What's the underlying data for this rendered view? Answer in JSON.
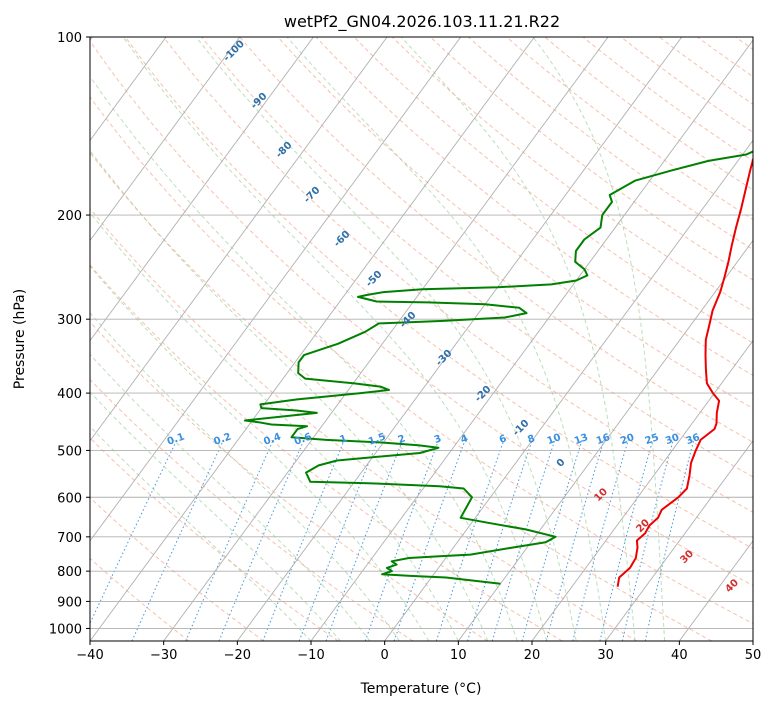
{
  "chart_data": {
    "type": "line",
    "title": "wetPf2_GN04.2026.103.11.21.R22",
    "xlabel": "Temperature (°C)",
    "ylabel": "Pressure (hPa)",
    "xlim": [
      -40,
      50
    ],
    "ylim": [
      1050,
      100
    ],
    "y_scale": "log",
    "grid": true,
    "x_ticks": [
      -40,
      -30,
      -20,
      -10,
      0,
      10,
      20,
      30,
      40,
      50
    ],
    "x_tick_labels": [
      "−40",
      "−30",
      "−20",
      "−10",
      "0",
      "10",
      "20",
      "30",
      "40",
      "50"
    ],
    "y_ticks": [
      100,
      200,
      300,
      400,
      500,
      600,
      700,
      800,
      900,
      1000
    ],
    "y_tick_labels": [
      "100",
      "200",
      "300",
      "400",
      "500",
      "600",
      "700",
      "800",
      "900",
      "1000"
    ],
    "dry_adiabat_labels": [
      "-100",
      "-90",
      "-80",
      "-70",
      "-60",
      "-50",
      "-40",
      "-30",
      "-20",
      "-10",
      "0",
      "10",
      "20",
      "30",
      "40"
    ],
    "mixing_ratio_labels": [
      "0.1",
      "0.2",
      "0.4",
      "0.6",
      "1",
      "1.5",
      "2",
      "3",
      "4",
      "6",
      "8",
      "10",
      "13",
      "16",
      "20",
      "25",
      "30",
      "36"
    ],
    "series": [
      {
        "role": "temperature",
        "color": "#ee0000",
        "points": [
          [
            26.2,
            850
          ],
          [
            25.5,
            820
          ],
          [
            26.0,
            790
          ],
          [
            25.8,
            760
          ],
          [
            25.0,
            730
          ],
          [
            24.2,
            710
          ],
          [
            24.6,
            690
          ],
          [
            24.4,
            670
          ],
          [
            24.8,
            650
          ],
          [
            24.5,
            630
          ],
          [
            25.5,
            600
          ],
          [
            25.8,
            580
          ],
          [
            24.8,
            550
          ],
          [
            23.8,
            525
          ],
          [
            23.2,
            500
          ],
          [
            22.8,
            480
          ],
          [
            23.6,
            460
          ],
          [
            23.3,
            450
          ],
          [
            22.3,
            432
          ],
          [
            21.4,
            412
          ],
          [
            19.8,
            400
          ],
          [
            18.0,
            385
          ],
          [
            16.5,
            365
          ],
          [
            15.0,
            345
          ],
          [
            13.5,
            325
          ],
          [
            12.4,
            305
          ],
          [
            11.5,
            290
          ],
          [
            10.7,
            270
          ],
          [
            9.8,
            255
          ],
          [
            8.8,
            240
          ],
          [
            7.6,
            225
          ],
          [
            6.4,
            210
          ],
          [
            5.2,
            195
          ],
          [
            3.8,
            180
          ],
          [
            2.6,
            168
          ],
          [
            1.3,
            155
          ],
          [
            0.3,
            145
          ],
          [
            -0.3,
            135
          ],
          [
            0.0,
            126
          ],
          [
            0.6,
            117
          ],
          [
            1.2,
            110
          ],
          [
            1.8,
            102
          ],
          [
            2.4,
            97
          ]
        ]
      },
      {
        "role": "dewpoint",
        "color": "#008000",
        "points": [
          [
            10.0,
            840
          ],
          [
            6.0,
            830
          ],
          [
            2.0,
            820
          ],
          [
            -3.0,
            815
          ],
          [
            -7.0,
            810
          ],
          [
            -6.0,
            800
          ],
          [
            -7.0,
            790
          ],
          [
            -6.0,
            780
          ],
          [
            -7.0,
            770
          ],
          [
            -5.0,
            760
          ],
          [
            -1.0,
            755
          ],
          [
            3.0,
            750
          ],
          [
            8.0,
            730
          ],
          [
            12.0,
            715
          ],
          [
            12.8,
            700
          ],
          [
            8.0,
            680
          ],
          [
            3.0,
            665
          ],
          [
            -2.0,
            650
          ],
          [
            -2.5,
            600
          ],
          [
            -4.5,
            580
          ],
          [
            -8.0,
            575
          ],
          [
            -18.0,
            568
          ],
          [
            -26.0,
            565
          ],
          [
            -27.5,
            545
          ],
          [
            -26.5,
            530
          ],
          [
            -24.5,
            520
          ],
          [
            -14.0,
            505
          ],
          [
            -12.0,
            495
          ],
          [
            -15.0,
            490
          ],
          [
            -20.0,
            485
          ],
          [
            -28.0,
            480
          ],
          [
            -33.0,
            475
          ],
          [
            -33.0,
            460
          ],
          [
            -32.0,
            455
          ],
          [
            -37.0,
            452
          ],
          [
            -39.0,
            448
          ],
          [
            -41.0,
            445
          ],
          [
            -32.0,
            432
          ],
          [
            -35.0,
            428
          ],
          [
            -40.0,
            424
          ],
          [
            -40.5,
            418
          ],
          [
            -36.0,
            410
          ],
          [
            -28.0,
            400
          ],
          [
            -24.5,
            395
          ],
          [
            -26.0,
            390
          ],
          [
            -30.0,
            385
          ],
          [
            -37.0,
            378
          ],
          [
            -38.5,
            370
          ],
          [
            -39.5,
            355
          ],
          [
            -39.5,
            345
          ],
          [
            -36.0,
            330
          ],
          [
            -33.5,
            315
          ],
          [
            -32.5,
            305
          ],
          [
            -24.0,
            302
          ],
          [
            -16.0,
            298
          ],
          [
            -13.5,
            293
          ],
          [
            -15.0,
            287
          ],
          [
            -20.0,
            283
          ],
          [
            -28.0,
            281
          ],
          [
            -35.0,
            280
          ],
          [
            -38.0,
            275
          ],
          [
            -37.0,
            273
          ],
          [
            -35.0,
            270
          ],
          [
            -30.0,
            267
          ],
          [
            -20.0,
            265
          ],
          [
            -13.0,
            262
          ],
          [
            -10.0,
            258
          ],
          [
            -9.0,
            253
          ],
          [
            -10.0,
            247
          ],
          [
            -12.0,
            240
          ],
          [
            -13.0,
            230
          ],
          [
            -13.0,
            220
          ],
          [
            -12.0,
            210
          ],
          [
            -13.0,
            200
          ],
          [
            -13.0,
            190
          ],
          [
            -14.0,
            185
          ],
          [
            -12.0,
            175
          ],
          [
            -8.0,
            168
          ],
          [
            -4.0,
            162
          ],
          [
            0.5,
            158
          ],
          [
            1.5,
            155
          ],
          [
            1.5,
            147
          ],
          [
            0.5,
            142
          ],
          [
            -1.0,
            138
          ],
          [
            -1.5,
            134
          ],
          [
            -1.0,
            128
          ],
          [
            -0.5,
            122
          ],
          [
            -1.2,
            115
          ],
          [
            -1.0,
            108
          ],
          [
            -0.5,
            103
          ],
          [
            0.2,
            98
          ]
        ]
      }
    ]
  }
}
